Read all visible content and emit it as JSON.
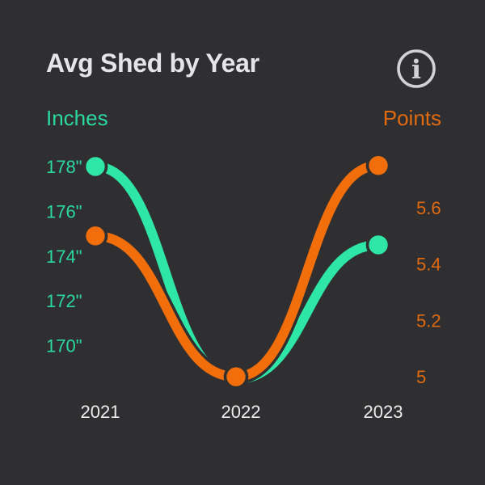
{
  "header": {
    "title": "Avg Shed by Year",
    "info_icon": "circled letter i (info)"
  },
  "chart_data": {
    "type": "line",
    "title": "Avg Shed by Year",
    "categories": [
      "2021",
      "2022",
      "2023"
    ],
    "series": [
      {
        "name": "Inches",
        "axis": "left",
        "values": [
          178,
          168.5,
          174.5
        ],
        "value_suffix": "\"",
        "color": "#2ee6a6"
      },
      {
        "name": "Points",
        "axis": "right",
        "values": [
          5.5,
          5,
          5.75
        ],
        "color": "#f26e0a"
      }
    ],
    "left_axis": {
      "label": "Inches",
      "ticks": [
        178,
        176,
        174,
        172,
        170
      ],
      "tick_suffix": "\"",
      "range_shown": [
        170,
        178
      ]
    },
    "right_axis": {
      "label": "Points",
      "ticks": [
        5.6,
        5.4,
        5.2,
        5
      ],
      "range_shown": [
        5,
        5.6
      ]
    },
    "grid": false,
    "legend_position": "axis-corner-labels",
    "style": "smooth curved lines with round markers, dual y-axis, dark theme"
  },
  "colors": {
    "background": "#2f2f31",
    "series_inches": "#2ee6a6",
    "series_points": "#f26e0a",
    "axis_inches_label": "#2bd89e",
    "axis_points_label": "#e16a10",
    "title_text": "#e5e5e7",
    "x_axis_label": "#ebebeb",
    "info_icon": "#d2d2d4"
  }
}
